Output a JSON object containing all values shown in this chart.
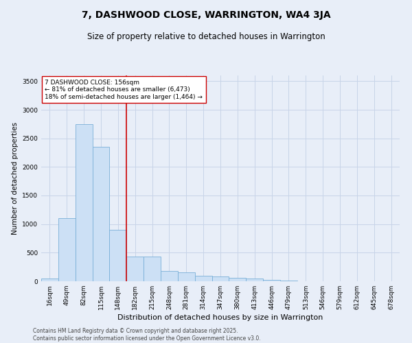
{
  "title": "7, DASHWOOD CLOSE, WARRINGTON, WA4 3JA",
  "subtitle": "Size of property relative to detached houses in Warrington",
  "xlabel": "Distribution of detached houses by size in Warrington",
  "ylabel": "Number of detached properties",
  "categories": [
    "16sqm",
    "49sqm",
    "82sqm",
    "115sqm",
    "148sqm",
    "182sqm",
    "215sqm",
    "248sqm",
    "281sqm",
    "314sqm",
    "347sqm",
    "380sqm",
    "413sqm",
    "446sqm",
    "479sqm",
    "513sqm",
    "546sqm",
    "579sqm",
    "612sqm",
    "645sqm",
    "678sqm"
  ],
  "values": [
    50,
    1100,
    2750,
    2350,
    900,
    430,
    430,
    175,
    155,
    95,
    90,
    55,
    45,
    25,
    10,
    5,
    3,
    2,
    1,
    1,
    0
  ],
  "bar_color": "#cce0f5",
  "bar_edge_color": "#7ab0d8",
  "vline_x": 4.5,
  "vline_color": "#cc0000",
  "annotation_text": "7 DASHWOOD CLOSE: 156sqm\n← 81% of detached houses are smaller (6,473)\n18% of semi-detached houses are larger (1,464) →",
  "annotation_box_color": "#ffffff",
  "annotation_box_edge": "#cc0000",
  "ylim": [
    0,
    3600
  ],
  "yticks": [
    0,
    500,
    1000,
    1500,
    2000,
    2500,
    3000,
    3500
  ],
  "grid_color": "#c8d4e8",
  "bg_color": "#e8eef8",
  "footer": "Contains HM Land Registry data © Crown copyright and database right 2025.\nContains public sector information licensed under the Open Government Licence v3.0.",
  "title_fontsize": 10,
  "subtitle_fontsize": 8.5,
  "ylabel_fontsize": 7.5,
  "xlabel_fontsize": 8,
  "tick_fontsize": 6.5,
  "ann_fontsize": 6.5,
  "footer_fontsize": 5.5
}
